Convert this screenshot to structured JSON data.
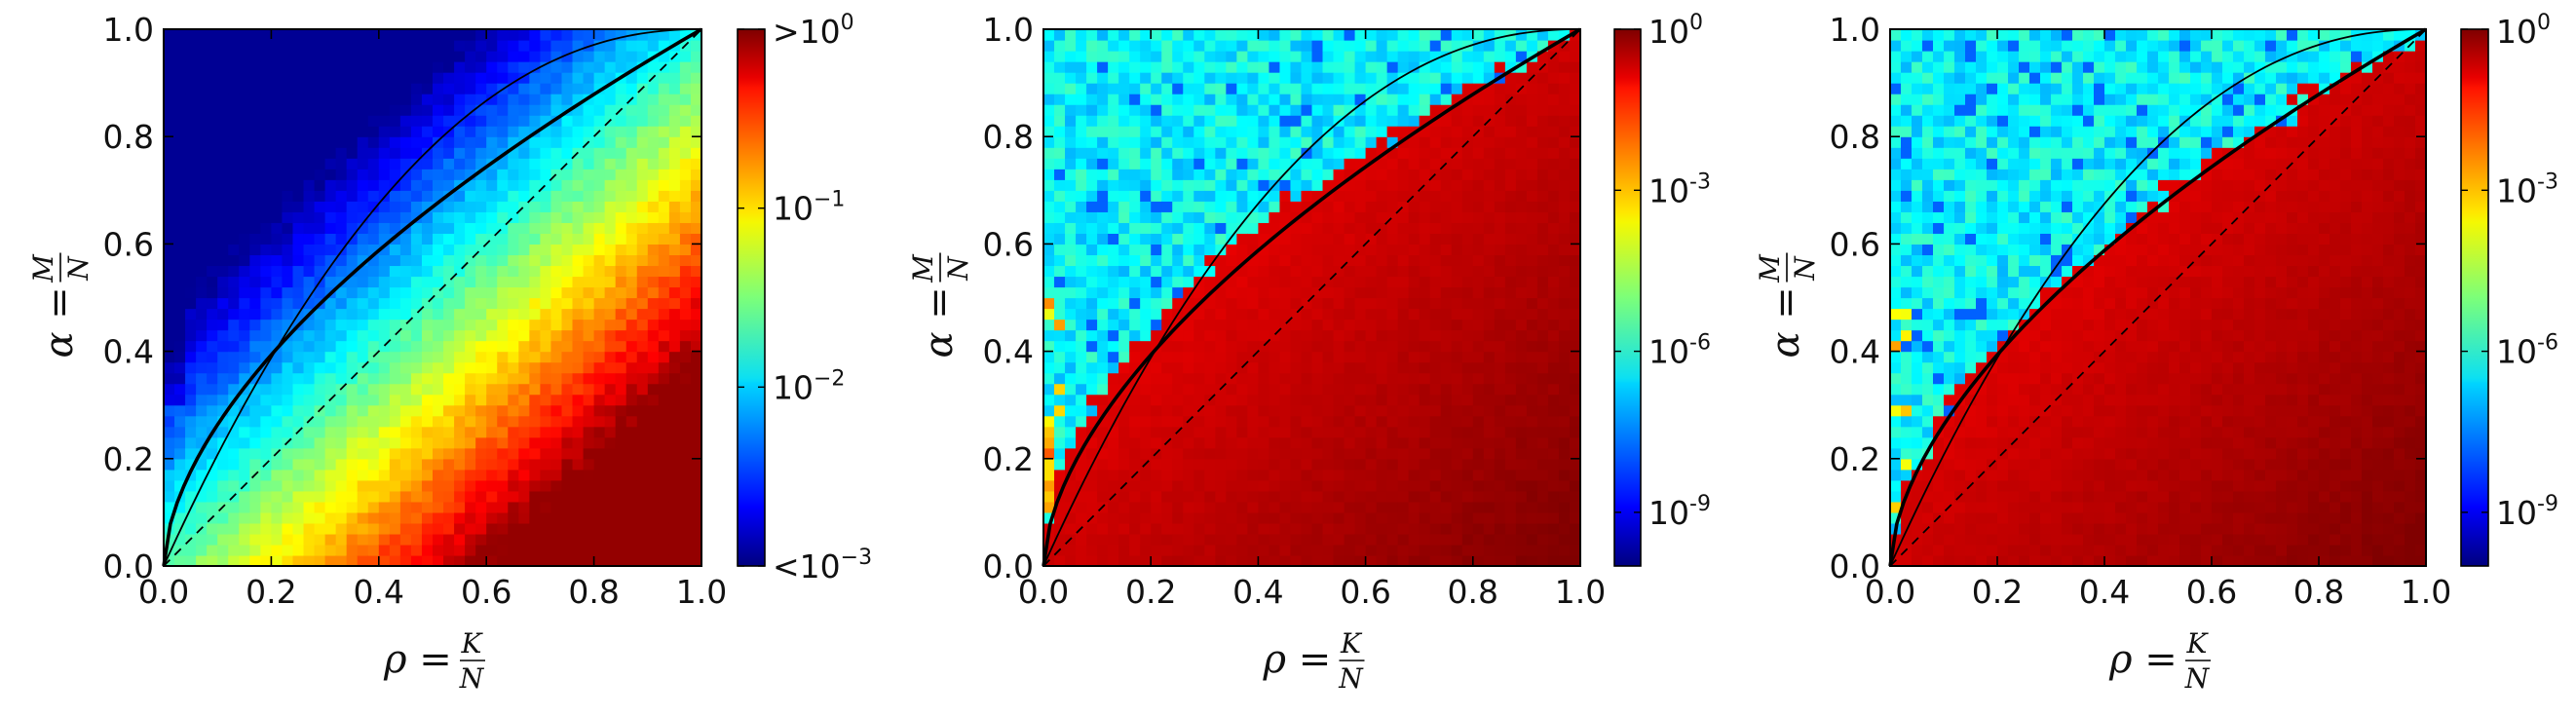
{
  "chart_data": [
    {
      "type": "heatmap",
      "title": "",
      "xlabel": "ρ =",
      "xlabel_fraction": {
        "numerator": "K",
        "denominator": "N"
      },
      "ylabel": "α =",
      "ylabel_fraction": {
        "numerator": "M",
        "denominator": "N"
      },
      "xlim": [
        0,
        1
      ],
      "ylim": [
        0,
        1
      ],
      "xticks": [
        "0.0",
        "0.2",
        "0.4",
        "0.6",
        "0.8",
        "1.0"
      ],
      "yticks": [
        "0.0",
        "0.2",
        "0.4",
        "0.6",
        "0.8",
        "1.0"
      ],
      "colormap": "jet",
      "color_scale": "log",
      "colorbar_range": [
        0.001,
        1
      ],
      "colorbar_ticks": [
        {
          "prefix": ">",
          "base": "10",
          "exp": "0",
          "value": 1
        },
        {
          "prefix": "",
          "base": "10",
          "exp": "−1",
          "value": 0.1
        },
        {
          "prefix": "",
          "base": "10",
          "exp": "−2",
          "value": 0.01
        },
        {
          "prefix": "<",
          "base": "10",
          "exp": "−3",
          "value": 0.001
        }
      ],
      "overlay_curves": [
        "thin solid",
        "thick solid",
        "dashed diagonal"
      ]
    },
    {
      "type": "heatmap",
      "title": "",
      "xlabel": "ρ =",
      "xlabel_fraction": {
        "numerator": "K",
        "denominator": "N"
      },
      "ylabel": "α =",
      "ylabel_fraction": {
        "numerator": "M",
        "denominator": "N"
      },
      "xlim": [
        0,
        1
      ],
      "ylim": [
        0,
        1
      ],
      "xticks": [
        "0.0",
        "0.2",
        "0.4",
        "0.6",
        "0.8",
        "1.0"
      ],
      "yticks": [
        "0.0",
        "0.2",
        "0.4",
        "0.6",
        "0.8",
        "1.0"
      ],
      "colormap": "jet",
      "color_scale": "log",
      "colorbar_range": [
        1e-10,
        1
      ],
      "colorbar_ticks": [
        {
          "prefix": "",
          "base": "10",
          "exp": "0",
          "value": 1
        },
        {
          "prefix": "",
          "base": "10",
          "exp": "-3",
          "value": 0.001
        },
        {
          "prefix": "",
          "base": "10",
          "exp": "-6",
          "value": 1e-06
        },
        {
          "prefix": "",
          "base": "10",
          "exp": "-9",
          "value": 1e-09
        }
      ],
      "overlay_curves": [
        "thin solid",
        "thick solid",
        "dashed diagonal"
      ]
    },
    {
      "type": "heatmap",
      "title": "",
      "xlabel": "ρ =",
      "xlabel_fraction": {
        "numerator": "K",
        "denominator": "N"
      },
      "ylabel": "α =",
      "ylabel_fraction": {
        "numerator": "M",
        "denominator": "N"
      },
      "xlim": [
        0,
        1
      ],
      "ylim": [
        0,
        1
      ],
      "xticks": [
        "0.0",
        "0.2",
        "0.4",
        "0.6",
        "0.8",
        "1.0"
      ],
      "yticks": [
        "0.0",
        "0.2",
        "0.4",
        "0.6",
        "0.8",
        "1.0"
      ],
      "colormap": "jet",
      "color_scale": "log",
      "colorbar_range": [
        1e-10,
        1
      ],
      "colorbar_ticks": [
        {
          "prefix": "",
          "base": "10",
          "exp": "0",
          "value": 1
        },
        {
          "prefix": "",
          "base": "10",
          "exp": "-3",
          "value": 0.001
        },
        {
          "prefix": "",
          "base": "10",
          "exp": "-6",
          "value": 1e-06
        },
        {
          "prefix": "",
          "base": "10",
          "exp": "-9",
          "value": 1e-09
        }
      ],
      "overlay_curves": [
        "thin solid",
        "thick solid",
        "dashed diagonal"
      ]
    }
  ]
}
